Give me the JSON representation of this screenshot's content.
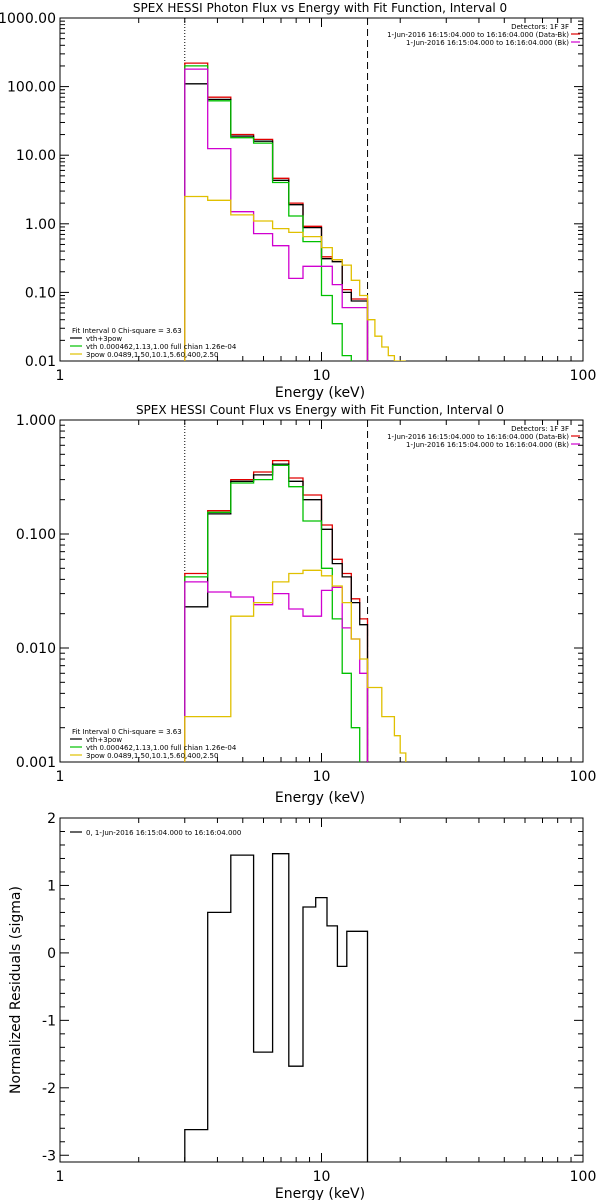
{
  "chart_data": [
    {
      "type": "line",
      "title": "SPEX HESSI Photon Flux vs Energy with Fit Function, Interval 0",
      "xlabel": "Energy (keV)",
      "ylabel": "",
      "xscale": "log",
      "yscale": "log",
      "xlim": [
        1,
        100
      ],
      "ylim": [
        0.01,
        1000
      ],
      "x_ticks": [
        {
          "v": 1,
          "t": "1"
        },
        {
          "v": 10,
          "t": "10"
        },
        {
          "v": 100,
          "t": "100"
        }
      ],
      "y_ticks": [
        {
          "v": 1000,
          "t": "1000.00"
        },
        {
          "v": 100,
          "t": "100.00"
        },
        {
          "v": 10,
          "t": "10.00"
        },
        {
          "v": 1,
          "t": "1.00"
        },
        {
          "v": 0.1,
          "t": "0.10"
        },
        {
          "v": 0.01,
          "t": "0.01"
        }
      ],
      "vlines": [
        {
          "x": 3,
          "style": "dotted"
        },
        {
          "x": 15,
          "style": "dashed"
        }
      ],
      "info_text": [
        {
          "text": "Detectors: 1F 3F"
        },
        {
          "text": "1-Jun-2016 16:15:04.000 to 16:16:04.000 (Data-Bk)",
          "color": "#e00000"
        },
        {
          "text": "1-Jun-2016 16:15:04.000 to 16:16:04.000 (Bk)",
          "color": "#d000d0"
        }
      ],
      "fit_text": [
        {
          "text": "Fit Interval  0    Chi-square = 3.63"
        },
        {
          "text": "vth+3pow",
          "color": "#000000"
        },
        {
          "text": "vth 0.000462,1.13,1.00   full chian 1.26e-04",
          "color": "#00c000"
        },
        {
          "text": "3pow 0.0489,1.50,10.1,5.60,400,2.50",
          "color": "#e0c000"
        }
      ],
      "series": [
        {
          "color": "#e00000",
          "x": [
            3,
            3.33,
            3.67,
            4,
            4.5,
            5,
            5.5,
            6,
            6.5,
            7,
            7.5,
            8,
            8.5,
            9,
            10,
            11,
            12,
            13,
            14,
            15
          ],
          "values": [
            220,
            220,
            70,
            70,
            20,
            20,
            17,
            17,
            4.6,
            4.6,
            2.0,
            2.0,
            0.92,
            0.92,
            0.33,
            0.3,
            0.11,
            0.08,
            0.08,
            0.06
          ]
        },
        {
          "color": "#000000",
          "x": [
            3,
            3.33,
            3.67,
            4,
            4.5,
            5,
            5.5,
            6,
            6.5,
            7,
            7.5,
            8,
            8.5,
            9,
            10,
            11,
            12,
            13,
            14,
            15
          ],
          "values": [
            110,
            110,
            65,
            65,
            19,
            19,
            16,
            16,
            4.3,
            4.3,
            1.9,
            1.9,
            0.88,
            0.88,
            0.31,
            0.28,
            0.1,
            0.075,
            0.075,
            0.06
          ]
        },
        {
          "color": "#00c000",
          "x": [
            3,
            3.33,
            3.67,
            4,
            4.5,
            5,
            5.5,
            6,
            6.5,
            7,
            7.5,
            8,
            8.5,
            9,
            10,
            11,
            12,
            13
          ],
          "values": [
            200,
            200,
            62,
            62,
            18,
            18,
            15,
            15,
            4.0,
            4.0,
            1.3,
            1.3,
            0.55,
            0.55,
            0.09,
            0.035,
            0.012,
            0.009
          ]
        },
        {
          "color": "#d000d0",
          "x": [
            3,
            3.33,
            3.67,
            4,
            4.5,
            5,
            5.5,
            6,
            6.5,
            7,
            7.5,
            8,
            8.5,
            9,
            10,
            11,
            12,
            13,
            14,
            15
          ],
          "values": [
            180,
            180,
            12.5,
            12.5,
            1.5,
            1.5,
            0.72,
            0.72,
            0.48,
            0.48,
            0.16,
            0.16,
            0.24,
            0.24,
            0.24,
            0.13,
            0.06,
            0.06,
            0.06,
            0.06
          ]
        },
        {
          "color": "#e0c000",
          "x": [
            3,
            3.33,
            3.67,
            4,
            4.5,
            5,
            5.5,
            6,
            6.5,
            7,
            7.5,
            8,
            8.5,
            9,
            10,
            11,
            12,
            13,
            14,
            15,
            16,
            17,
            18,
            19,
            20,
            21
          ],
          "values": [
            2.5,
            2.5,
            2.2,
            2.2,
            1.35,
            1.35,
            1.1,
            1.1,
            0.85,
            0.85,
            0.75,
            0.75,
            0.65,
            0.65,
            0.45,
            0.3,
            0.25,
            0.15,
            0.09,
            0.04,
            0.023,
            0.016,
            0.012,
            0.01,
            0.009,
            0.009
          ]
        }
      ]
    },
    {
      "type": "line",
      "title": "SPEX HESSI Count Flux vs Energy with Fit Function, Interval 0",
      "xlabel": "Energy (keV)",
      "ylabel": "",
      "xscale": "log",
      "yscale": "log",
      "xlim": [
        1,
        100
      ],
      "ylim": [
        0.001,
        1
      ],
      "x_ticks": [
        {
          "v": 1,
          "t": "1"
        },
        {
          "v": 10,
          "t": "10"
        },
        {
          "v": 100,
          "t": "100"
        }
      ],
      "y_ticks": [
        {
          "v": 1,
          "t": "1.000"
        },
        {
          "v": 0.1,
          "t": "0.100"
        },
        {
          "v": 0.01,
          "t": "0.010"
        },
        {
          "v": 0.001,
          "t": "0.001"
        }
      ],
      "vlines": [
        {
          "x": 3,
          "style": "dotted"
        },
        {
          "x": 15,
          "style": "dashed"
        }
      ],
      "info_text": [
        {
          "text": "Detectors: 1F 3F"
        },
        {
          "text": "1-Jun-2016 16:15:04.000 to 16:16:04.000 (Data-Bk)",
          "color": "#e00000"
        },
        {
          "text": "1-Jun-2016 16:15:04.000 to 16:16:04.000 (Bk)",
          "color": "#d000d0"
        }
      ],
      "fit_text": [
        {
          "text": "Fit Interval  0    Chi-square = 3.63"
        },
        {
          "text": "vth+3pow",
          "color": "#000000"
        },
        {
          "text": "vth 0.000462,1.13,1.00   full chian 1.26e-04",
          "color": "#00c000"
        },
        {
          "text": "3pow 0.0489,1.50,10.1,5.60,400,2.50",
          "color": "#e0c000"
        }
      ],
      "series": [
        {
          "color": "#e00000",
          "x": [
            3,
            3.33,
            3.67,
            4,
            4.5,
            5,
            5.5,
            6,
            6.5,
            7,
            7.5,
            8,
            8.5,
            9,
            10,
            11,
            12,
            13,
            14,
            15
          ],
          "values": [
            0.045,
            0.045,
            0.16,
            0.16,
            0.3,
            0.3,
            0.35,
            0.35,
            0.44,
            0.44,
            0.31,
            0.31,
            0.22,
            0.22,
            0.12,
            0.06,
            0.045,
            0.027,
            0.018,
            0.008
          ]
        },
        {
          "color": "#000000",
          "x": [
            3,
            3.33,
            3.67,
            4,
            4.5,
            5,
            5.5,
            6,
            6.5,
            7,
            7.5,
            8,
            8.5,
            9,
            10,
            11,
            12,
            13,
            14,
            15
          ],
          "values": [
            0.023,
            0.023,
            0.15,
            0.15,
            0.29,
            0.29,
            0.33,
            0.33,
            0.41,
            0.41,
            0.29,
            0.29,
            0.2,
            0.2,
            0.11,
            0.055,
            0.042,
            0.025,
            0.016,
            0.0075
          ]
        },
        {
          "color": "#00c000",
          "x": [
            3,
            3.33,
            3.67,
            4,
            4.5,
            5,
            5.5,
            6,
            6.5,
            7,
            7.5,
            8,
            8.5,
            9,
            10,
            11,
            12,
            13,
            14
          ],
          "values": [
            0.042,
            0.042,
            0.155,
            0.155,
            0.28,
            0.28,
            0.3,
            0.3,
            0.4,
            0.4,
            0.26,
            0.26,
            0.13,
            0.13,
            0.05,
            0.018,
            0.006,
            0.002,
            0.001
          ]
        },
        {
          "color": "#d000d0",
          "x": [
            3,
            3.33,
            3.67,
            4,
            4.5,
            5,
            5.5,
            6,
            6.5,
            7,
            7.5,
            8,
            8.5,
            9,
            10,
            11,
            12,
            13,
            14,
            15
          ],
          "values": [
            0.038,
            0.038,
            0.031,
            0.031,
            0.028,
            0.028,
            0.024,
            0.024,
            0.03,
            0.03,
            0.022,
            0.022,
            0.019,
            0.019,
            0.032,
            0.034,
            0.015,
            0.012,
            0.006,
            0.005
          ]
        },
        {
          "color": "#e0c000",
          "x": [
            3,
            3.33,
            3.67,
            4,
            4.5,
            5,
            5.5,
            6,
            6.5,
            7,
            7.5,
            8,
            8.5,
            9,
            10,
            11,
            12,
            13,
            14,
            15,
            16,
            17,
            18,
            19,
            20,
            21
          ],
          "values": [
            0.0025,
            0.0025,
            0.0025,
            0.0025,
            0.019,
            0.019,
            0.025,
            0.025,
            0.038,
            0.038,
            0.045,
            0.045,
            0.048,
            0.048,
            0.043,
            0.035,
            0.025,
            0.012,
            0.008,
            0.0045,
            0.0045,
            0.0025,
            0.0025,
            0.0017,
            0.0012,
            0.0012
          ]
        }
      ]
    },
    {
      "type": "line",
      "title": "",
      "xlabel": "Energy (keV)",
      "ylabel": "Normalized Residuals (sigma)",
      "xscale": "log",
      "yscale": "linear",
      "xlim": [
        1,
        100
      ],
      "ylim": [
        -3.1,
        2.0
      ],
      "x_ticks": [
        {
          "v": 1,
          "t": "1"
        },
        {
          "v": 10,
          "t": "10"
        },
        {
          "v": 100,
          "t": "100"
        }
      ],
      "y_ticks": [
        {
          "v": 2,
          "t": "2"
        },
        {
          "v": 1,
          "t": "1"
        },
        {
          "v": 0,
          "t": "0"
        },
        {
          "v": -1,
          "t": "-1"
        },
        {
          "v": -2,
          "t": "-2"
        },
        {
          "v": -3,
          "t": "-3"
        }
      ],
      "vlines": [],
      "info_text": [],
      "legend": {
        "text": "0,  1-Jun-2016 16:15:04.000 to 16:16:04.000",
        "placement": "top-left"
      },
      "series": [
        {
          "color": "#000000",
          "step_edges": true,
          "x": [
            3,
            3.33,
            3.67,
            4,
            4.5,
            5,
            5.5,
            6,
            6.5,
            7,
            7.5,
            8,
            8.5,
            9,
            9.5,
            10,
            10.5,
            11,
            11.5,
            12,
            12.5,
            13,
            13.5,
            14,
            14.5,
            15
          ],
          "values": [
            -2.62,
            -2.62,
            0.6,
            0.6,
            1.45,
            1.45,
            -1.47,
            -1.47,
            1.47,
            1.47,
            -1.68,
            -1.68,
            0.68,
            0.68,
            0.82,
            0.82,
            0.4,
            0.4,
            -0.2,
            -0.2,
            0.32,
            0.32,
            0.32,
            0.32,
            0.32,
            0.32
          ]
        }
      ]
    }
  ]
}
